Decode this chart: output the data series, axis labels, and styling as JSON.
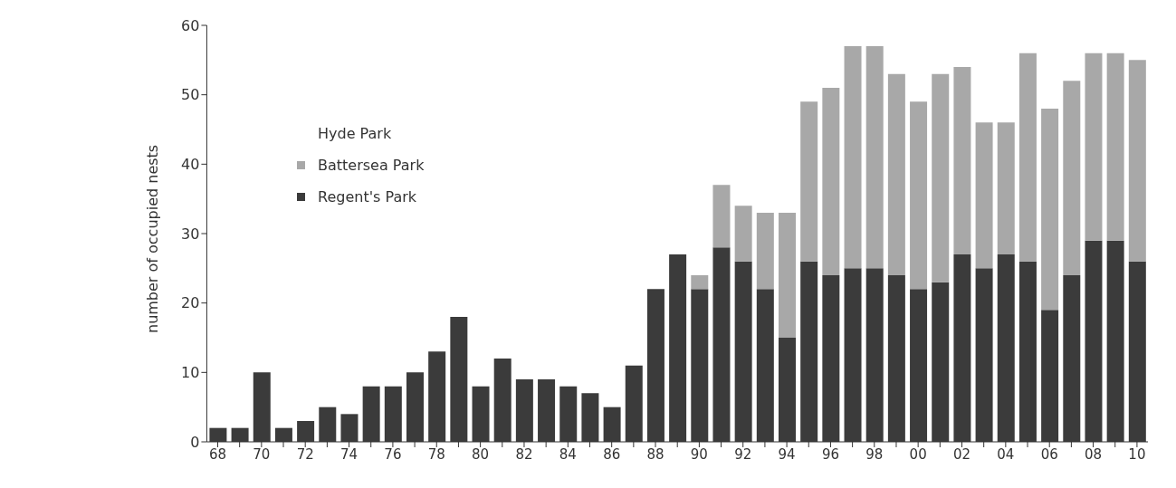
{
  "chart_data": {
    "type": "bar",
    "stacked": true,
    "ylabel": "number of occupied nests",
    "categories": [
      "68",
      null,
      "70",
      null,
      "72",
      null,
      "74",
      null,
      "76",
      null,
      "78",
      null,
      "80",
      null,
      "82",
      null,
      "84",
      null,
      "86",
      null,
      "88",
      null,
      "90",
      null,
      "92",
      null,
      "94",
      null,
      "96",
      null,
      "98",
      null,
      "00",
      null,
      "02",
      null,
      "04",
      null,
      "06",
      null,
      "08",
      null,
      "10"
    ],
    "series": [
      {
        "name": "Regent's Park",
        "color": "#3b3b3b",
        "values": [
          2,
          2,
          10,
          2,
          3,
          5,
          4,
          8,
          8,
          10,
          13,
          18,
          8,
          12,
          9,
          9,
          8,
          7,
          5,
          11,
          22,
          27,
          22,
          28,
          26,
          22,
          15,
          26,
          24,
          25,
          25,
          24,
          22,
          23,
          27,
          25,
          27,
          26,
          19,
          24,
          29,
          29,
          26
        ]
      },
      {
        "name": "Battersea Park",
        "color": "#a8a8a8",
        "values": [
          null,
          null,
          null,
          null,
          null,
          null,
          null,
          null,
          null,
          null,
          null,
          null,
          null,
          null,
          null,
          null,
          null,
          null,
          null,
          null,
          null,
          null,
          2,
          9,
          8,
          11,
          18,
          23,
          27,
          32,
          32,
          29,
          27,
          30,
          27,
          21,
          19,
          30,
          29,
          28,
          27,
          27,
          29
        ]
      },
      {
        "name": "Hyde Park",
        "values": [
          null,
          null,
          null,
          null,
          null,
          null,
          null,
          null,
          null,
          null,
          null,
          null,
          null,
          null,
          null,
          null,
          null,
          null,
          null,
          null,
          null,
          null,
          null,
          null,
          null,
          null,
          null,
          null,
          null,
          null,
          null,
          null,
          null,
          null,
          null,
          null,
          null,
          null,
          null,
          null,
          null,
          null,
          null
        ]
      }
    ],
    "ylim": [
      0,
      60
    ],
    "yticks": [
      0,
      10,
      20,
      30,
      40,
      50,
      60
    ],
    "grid": false,
    "legend": "top left"
  }
}
